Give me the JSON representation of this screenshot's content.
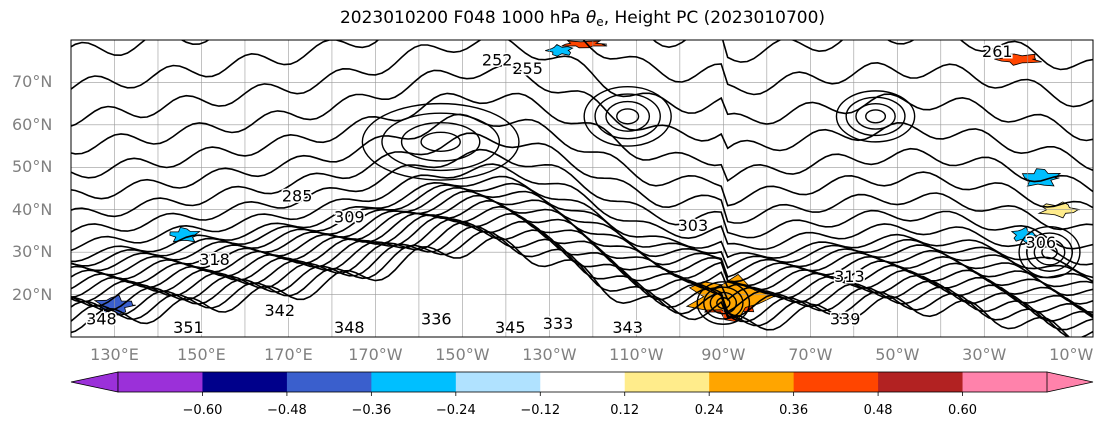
{
  "title": {
    "prefix": "2023010200 F048 1000 hPa ",
    "var_symbol": "θ",
    "var_sub": "e",
    "suffix": ", Height PC (2023010700)"
  },
  "chart_data": {
    "type": "heatmap",
    "title": "2023010200 F048 1000 hPa θe, Height PC (2023010700)",
    "map_projection": "plate carree",
    "lon_range": [
      120,
      355
    ],
    "lat_range": [
      10,
      80
    ],
    "lat_ticks": [
      "70°N",
      "60°N",
      "50°N",
      "40°N",
      "30°N",
      "20°N"
    ],
    "lat_values": [
      70,
      60,
      50,
      40,
      30,
      20
    ],
    "lon_ticks": [
      "130°E",
      "150°E",
      "170°E",
      "170°W",
      "150°W",
      "130°W",
      "110°W",
      "90°W",
      "70°W",
      "50°W",
      "30°W",
      "10°W"
    ],
    "lon_values": [
      130,
      150,
      170,
      190,
      210,
      230,
      250,
      270,
      290,
      310,
      330,
      350
    ],
    "grid": true,
    "colorbar": {
      "orientation": "horizontal",
      "extend": "both",
      "levels": [
        -0.72,
        -0.6,
        -0.48,
        -0.36,
        -0.24,
        -0.12,
        0.12,
        0.24,
        0.36,
        0.48,
        0.6,
        0.72
      ],
      "tick_labels": [
        "−0.60",
        "−0.48",
        "−0.36",
        "−0.24",
        "−0.12",
        "0.12",
        "0.24",
        "0.36",
        "0.48",
        "0.60"
      ],
      "tick_values": [
        -0.6,
        -0.48,
        -0.36,
        -0.24,
        -0.12,
        0.12,
        0.24,
        0.36,
        0.48,
        0.6
      ],
      "colors": [
        "#9b30d9",
        "#00008b",
        "#3a5fcd",
        "#00bfff",
        "#b0e2ff",
        "#ffffff",
        "#ffec8b",
        "#ffa500",
        "#ff4500",
        "#b22222",
        "#ff82ab"
      ],
      "under_color": "#9b30d9",
      "over_color": "#ff82ab"
    },
    "contour_labels": [
      {
        "text": "252",
        "lon": 218,
        "lat": 75
      },
      {
        "text": "255",
        "lon": 225,
        "lat": 73
      },
      {
        "text": "261",
        "lon": 333,
        "lat": 77
      },
      {
        "text": "343",
        "lon": 248,
        "lat": 12
      },
      {
        "text": "345",
        "lon": 221,
        "lat": 12
      },
      {
        "text": "348",
        "lon": 184,
        "lat": 12
      },
      {
        "text": "351",
        "lon": 147,
        "lat": 12
      },
      {
        "text": "348",
        "lon": 127,
        "lat": 14
      },
      {
        "text": "339",
        "lon": 298,
        "lat": 14
      },
      {
        "text": "306",
        "lon": 343,
        "lat": 32
      },
      {
        "text": "318",
        "lon": 153,
        "lat": 28
      },
      {
        "text": "342",
        "lon": 168,
        "lat": 16
      },
      {
        "text": "303",
        "lon": 263,
        "lat": 36
      },
      {
        "text": "285",
        "lon": 172,
        "lat": 43
      },
      {
        "text": "309",
        "lon": 184,
        "lat": 38
      },
      {
        "text": "333",
        "lon": 232,
        "lat": 13
      },
      {
        "text": "336",
        "lon": 204,
        "lat": 14
      },
      {
        "text": "313",
        "lon": 299,
        "lat": 24
      }
    ],
    "shaded_regions": [
      {
        "level": 0.42,
        "lon": [
          265,
          278
        ],
        "lat": [
          13,
          23
        ]
      },
      {
        "level": 0.3,
        "lon": [
          260,
          282
        ],
        "lat": [
          14,
          25
        ]
      },
      {
        "level": -0.42,
        "lon": [
          125,
          135
        ],
        "lat": [
          15,
          20
        ]
      },
      {
        "level": -0.3,
        "lon": [
          142,
          150
        ],
        "lat": [
          32,
          36
        ]
      },
      {
        "level": -0.3,
        "lon": [
          229,
          236
        ],
        "lat": [
          76,
          79
        ]
      },
      {
        "level": 0.42,
        "lon": [
          332,
          344
        ],
        "lat": [
          74,
          77
        ]
      },
      {
        "level": 0.42,
        "lon": [
          232,
          244
        ],
        "lat": [
          78,
          80
        ]
      },
      {
        "level": 0.2,
        "lon": [
          342,
          352
        ],
        "lat": [
          38,
          42
        ]
      },
      {
        "level": -0.3,
        "lon": [
          336,
          342
        ],
        "lat": [
          32,
          36
        ]
      },
      {
        "level": -0.3,
        "lon": [
          338,
          348
        ],
        "lat": [
          45,
          50
        ]
      }
    ]
  }
}
